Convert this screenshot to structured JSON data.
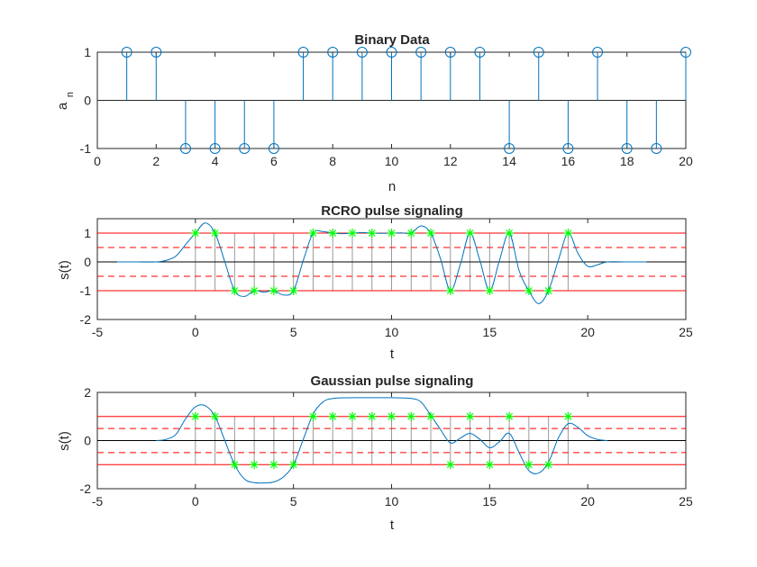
{
  "chart_data": [
    {
      "type": "stem",
      "title": "Binary Data",
      "xlabel": "n",
      "ylabel_main": "a",
      "ylabel_sub": "n",
      "xlim": [
        0,
        20
      ],
      "ylim": [
        -1,
        1
      ],
      "xticks": [
        0,
        2,
        4,
        6,
        8,
        10,
        12,
        14,
        16,
        18,
        20
      ],
      "yticks": [
        -1,
        0,
        1
      ],
      "x": [
        1,
        2,
        3,
        4,
        5,
        6,
        7,
        8,
        9,
        10,
        11,
        12,
        13,
        14,
        15,
        16,
        17,
        18,
        19,
        20
      ],
      "values": [
        1,
        1,
        -1,
        -1,
        -1,
        -1,
        1,
        1,
        1,
        1,
        1,
        1,
        1,
        -1,
        1,
        -1,
        1,
        -1,
        -1,
        1
      ],
      "marker": "circle",
      "colors": {
        "stem": "#0072bd",
        "axes": "#262626",
        "zero_line": "#262626"
      }
    },
    {
      "type": "line",
      "title": "RCRO pulse signaling",
      "xlabel": "t",
      "ylabel": "s(t)",
      "xlim": [
        -5,
        25
      ],
      "ylim": [
        -2,
        1.5
      ],
      "xticks": [
        -5,
        0,
        5,
        10,
        15,
        20,
        25
      ],
      "yticks": [
        -2,
        -1,
        0,
        1
      ],
      "reference_lines": {
        "solid_red": [
          1,
          -1
        ],
        "dashed_red": [
          0.5,
          -0.5
        ],
        "black": [
          0
        ]
      },
      "series": [
        {
          "values_t": [
            -4,
            -3,
            -2,
            -1.5,
            -1,
            -0.5,
            0,
            0.5,
            1,
            1.5,
            2,
            2.5,
            3,
            3.5,
            4,
            4.5,
            5,
            5.5,
            6,
            6.5,
            7,
            7.5,
            8,
            8.5,
            9,
            9.5,
            10,
            10.5,
            11,
            11.5,
            12,
            12.5,
            13,
            13.5,
            14,
            14.5,
            15,
            15.5,
            16,
            16.5,
            17,
            17.5,
            18,
            18.5,
            19,
            19.5,
            20,
            20.5,
            21,
            22,
            23
          ],
          "values_s": [
            0,
            0,
            0,
            0.05,
            0.2,
            0.6,
            1.0,
            1.35,
            1.0,
            0.0,
            -1.0,
            -1.2,
            -1.0,
            -1.05,
            -1.0,
            -1.15,
            -1.0,
            0.05,
            1.0,
            1.05,
            1.0,
            0.98,
            1.0,
            1.02,
            1.0,
            0.99,
            1.0,
            1.01,
            1.0,
            1.25,
            1.0,
            0.1,
            -1.0,
            -0.1,
            1.0,
            0.05,
            -1.0,
            0.05,
            1.0,
            -0.3,
            -1.0,
            -1.45,
            -1.0,
            0.05,
            1.0,
            0.3,
            -0.15,
            -0.1,
            0,
            0,
            0
          ]
        }
      ],
      "samples": {
        "marker": "asterisk",
        "t": [
          0,
          1,
          2,
          3,
          4,
          5,
          6,
          7,
          8,
          9,
          10,
          11,
          12,
          13,
          14,
          15,
          16,
          17,
          18,
          19
        ],
        "s": [
          1,
          1,
          -1,
          -1,
          -1,
          -1,
          1,
          1,
          1,
          1,
          1,
          1,
          1,
          -1,
          1,
          -1,
          1,
          -1,
          -1,
          1
        ]
      },
      "colors": {
        "signal": "#0072bd",
        "samples": "#00ff00",
        "reference": "#ff0000",
        "sample_lines": "#9a9a9a"
      }
    },
    {
      "type": "line",
      "title": "Gaussian pulse signaling",
      "xlabel": "t",
      "ylabel": "s(t)",
      "xlim": [
        -5,
        25
      ],
      "ylim": [
        -2,
        2
      ],
      "xticks": [
        -5,
        0,
        5,
        10,
        15,
        20,
        25
      ],
      "yticks": [
        -2,
        0,
        2
      ],
      "reference_lines": {
        "solid_red": [
          1,
          -1
        ],
        "dashed_red": [
          0.5,
          -0.5
        ],
        "black": [
          0
        ]
      },
      "series": [
        {
          "values_t": [
            -2,
            -1.5,
            -1,
            -0.5,
            0,
            0.5,
            1,
            1.5,
            2,
            2.5,
            3,
            3.5,
            4,
            4.5,
            5,
            5.5,
            6,
            6.5,
            7,
            8,
            9,
            10,
            11,
            11.5,
            12,
            12.5,
            13,
            13.5,
            14,
            14.5,
            15,
            15.5,
            16,
            16.5,
            17,
            17.5,
            18,
            18.5,
            19,
            19.5,
            20,
            20.5,
            21
          ],
          "values_s": [
            0.0,
            0.05,
            0.25,
            0.9,
            1.4,
            1.45,
            1.0,
            0.0,
            -1.0,
            -1.6,
            -1.75,
            -1.76,
            -1.72,
            -1.5,
            -1.0,
            0.05,
            1.1,
            1.6,
            1.75,
            1.78,
            1.78,
            1.78,
            1.75,
            1.6,
            1.05,
            0.45,
            -0.1,
            0.1,
            0.3,
            0.05,
            -0.3,
            -0.05,
            0.3,
            -0.5,
            -1.25,
            -1.35,
            -0.9,
            0.1,
            0.7,
            0.55,
            0.2,
            0.05,
            0.0
          ]
        }
      ],
      "samples": {
        "marker": "asterisk",
        "t": [
          0,
          1,
          2,
          3,
          4,
          5,
          6,
          7,
          8,
          9,
          10,
          11,
          12,
          13,
          14,
          15,
          16,
          17,
          18,
          19
        ],
        "s": [
          1,
          1,
          -1,
          -1,
          -1,
          -1,
          1,
          1,
          1,
          1,
          1,
          1,
          1,
          -1,
          1,
          -1,
          1,
          -1,
          -1,
          1
        ]
      },
      "colors": {
        "signal": "#0072bd",
        "samples": "#00ff00",
        "reference": "#ff0000",
        "sample_lines": "#9a9a9a"
      }
    }
  ]
}
